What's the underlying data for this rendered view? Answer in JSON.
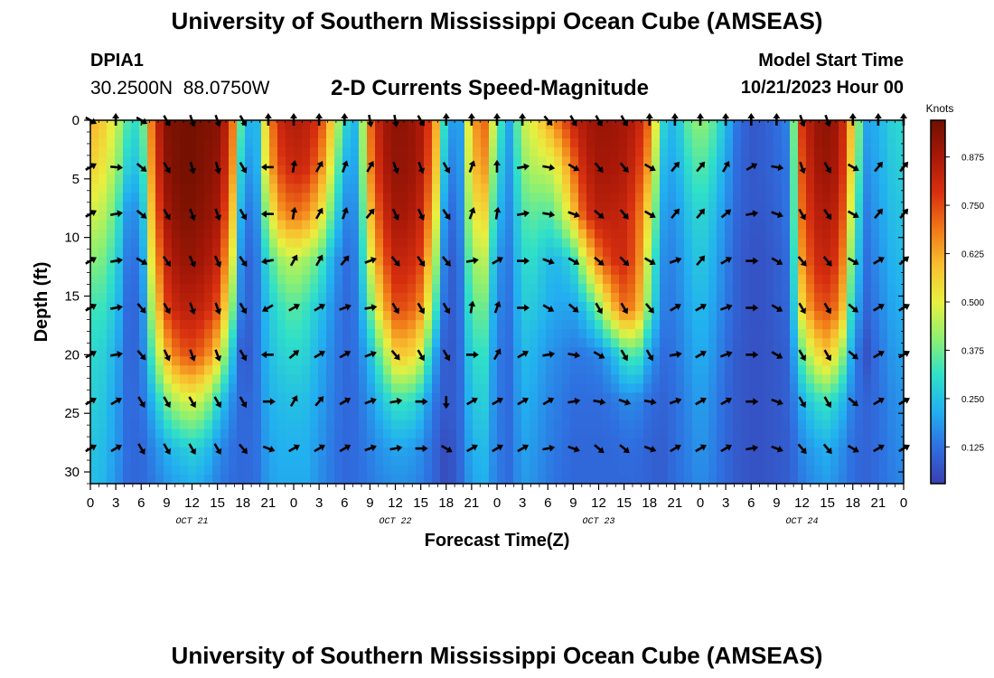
{
  "page": {
    "title": "University of Southern Mississippi Ocean Cube (AMSEAS)",
    "footer_title": "University of Southern Mississippi Ocean Cube (AMSEAS)"
  },
  "station": {
    "id": "DPIA1",
    "coords": "30.2500N  88.0750W"
  },
  "subtitle": "2-D Currents Speed-Magnitude",
  "model": {
    "label": "Model Start Time",
    "value": "10/21/2023 Hour 00"
  },
  "chart_data": {
    "type": "heatmap",
    "title": "2-D Currents Speed-Magnitude",
    "xlabel": "Forecast Time(Z)",
    "ylabel": "Depth (ft)",
    "x_ticks": [
      "0",
      "3",
      "6",
      "9",
      "12",
      "15",
      "18",
      "21",
      "0",
      "3",
      "6",
      "9",
      "12",
      "15",
      "18",
      "21",
      "0",
      "3",
      "6",
      "9",
      "12",
      "15",
      "18",
      "21",
      "0",
      "3",
      "6",
      "9",
      "12",
      "15",
      "18",
      "21",
      "0"
    ],
    "x_range_hours": [
      0,
      96
    ],
    "date_labels": [
      {
        "label": "OCT 21",
        "hour": 12
      },
      {
        "label": "OCT 22",
        "hour": 36
      },
      {
        "label": "OCT 23",
        "hour": 60
      },
      {
        "label": "OCT 24",
        "hour": 84
      }
    ],
    "y_ticks": [
      0,
      5,
      10,
      15,
      20,
      25,
      30
    ],
    "y_range_ft": [
      0,
      31
    ],
    "colorbar": {
      "unit": "Knots",
      "range": [
        0.03,
        0.97
      ],
      "ticks": [
        "0.875",
        "0.750",
        "0.625",
        "0.500",
        "0.375",
        "0.250",
        "0.125"
      ],
      "colors": [
        "#3a3fb0",
        "#2f6fe0",
        "#22b0f0",
        "#30e0c8",
        "#8ef070",
        "#e8f040",
        "#f8c030",
        "#f07818",
        "#d83010",
        "#a81808",
        "#701000"
      ]
    },
    "columns_hours": [
      0,
      1.5,
      3,
      4.5,
      6,
      7.5,
      9,
      10.5,
      12,
      13.5,
      15,
      16.5,
      18,
      19.5,
      21,
      22.5,
      24,
      25.5,
      27,
      28.5,
      30,
      31.5,
      33,
      34.5,
      36,
      37.5,
      39,
      40.5,
      42,
      43.5,
      45,
      46.5,
      48,
      49.5,
      51,
      52.5,
      54,
      55.5,
      57,
      58.5,
      60,
      61.5,
      63,
      64.5,
      66,
      67.5,
      69,
      70.5,
      72,
      73.5,
      75,
      76.5,
      78,
      79.5,
      81,
      82.5,
      84,
      85.5,
      87,
      88.5,
      90,
      91.5,
      93,
      94.5,
      96
    ],
    "rows_depth_ft": [
      0,
      4,
      8,
      12,
      16,
      20,
      24,
      28,
      31
    ],
    "speed_grid_knots": [
      [
        0.62,
        0.57,
        0.48,
        0.33,
        0.3,
        0.78,
        0.94,
        0.96,
        0.96,
        0.95,
        0.93,
        0.8,
        0.27,
        0.18,
        0.64,
        0.82,
        0.86,
        0.84,
        0.78,
        0.57,
        0.3,
        0.22,
        0.7,
        0.88,
        0.92,
        0.92,
        0.87,
        0.72,
        0.24,
        0.14,
        0.62,
        0.72,
        0.38,
        0.2,
        0.46,
        0.52,
        0.62,
        0.72,
        0.82,
        0.88,
        0.9,
        0.9,
        0.88,
        0.85,
        0.7,
        0.3,
        0.22,
        0.36,
        0.42,
        0.36,
        0.24,
        0.12,
        0.08,
        0.09,
        0.12,
        0.16,
        0.78,
        0.9,
        0.92,
        0.88,
        0.56,
        0.2,
        0.22,
        0.28,
        0.3
      ],
      [
        0.56,
        0.52,
        0.43,
        0.26,
        0.25,
        0.74,
        0.92,
        0.96,
        0.96,
        0.94,
        0.91,
        0.76,
        0.2,
        0.17,
        0.6,
        0.76,
        0.82,
        0.8,
        0.7,
        0.48,
        0.22,
        0.2,
        0.66,
        0.86,
        0.91,
        0.91,
        0.86,
        0.68,
        0.18,
        0.13,
        0.58,
        0.66,
        0.3,
        0.18,
        0.4,
        0.45,
        0.46,
        0.54,
        0.7,
        0.84,
        0.88,
        0.88,
        0.86,
        0.8,
        0.62,
        0.24,
        0.2,
        0.3,
        0.36,
        0.3,
        0.2,
        0.11,
        0.08,
        0.09,
        0.11,
        0.14,
        0.74,
        0.88,
        0.9,
        0.86,
        0.5,
        0.17,
        0.21,
        0.26,
        0.28
      ],
      [
        0.48,
        0.45,
        0.36,
        0.16,
        0.18,
        0.68,
        0.88,
        0.94,
        0.94,
        0.92,
        0.88,
        0.68,
        0.14,
        0.14,
        0.46,
        0.64,
        0.7,
        0.66,
        0.56,
        0.36,
        0.16,
        0.17,
        0.58,
        0.8,
        0.88,
        0.88,
        0.82,
        0.6,
        0.12,
        0.12,
        0.5,
        0.56,
        0.24,
        0.16,
        0.34,
        0.36,
        0.34,
        0.42,
        0.58,
        0.78,
        0.84,
        0.84,
        0.82,
        0.74,
        0.52,
        0.2,
        0.17,
        0.25,
        0.3,
        0.25,
        0.17,
        0.1,
        0.08,
        0.08,
        0.1,
        0.14,
        0.7,
        0.84,
        0.86,
        0.82,
        0.42,
        0.14,
        0.19,
        0.24,
        0.26
      ],
      [
        0.4,
        0.38,
        0.3,
        0.12,
        0.14,
        0.6,
        0.82,
        0.9,
        0.9,
        0.88,
        0.82,
        0.58,
        0.1,
        0.12,
        0.32,
        0.42,
        0.46,
        0.42,
        0.36,
        0.22,
        0.12,
        0.15,
        0.48,
        0.72,
        0.82,
        0.82,
        0.76,
        0.5,
        0.09,
        0.1,
        0.42,
        0.46,
        0.18,
        0.14,
        0.3,
        0.3,
        0.24,
        0.24,
        0.3,
        0.5,
        0.68,
        0.78,
        0.8,
        0.72,
        0.42,
        0.17,
        0.15,
        0.22,
        0.27,
        0.22,
        0.15,
        0.09,
        0.07,
        0.07,
        0.09,
        0.12,
        0.64,
        0.8,
        0.82,
        0.76,
        0.34,
        0.12,
        0.17,
        0.22,
        0.24
      ],
      [
        0.33,
        0.32,
        0.26,
        0.1,
        0.12,
        0.5,
        0.76,
        0.84,
        0.84,
        0.82,
        0.74,
        0.46,
        0.09,
        0.12,
        0.26,
        0.32,
        0.36,
        0.32,
        0.26,
        0.18,
        0.11,
        0.14,
        0.36,
        0.6,
        0.74,
        0.74,
        0.66,
        0.38,
        0.08,
        0.1,
        0.36,
        0.38,
        0.16,
        0.13,
        0.27,
        0.26,
        0.22,
        0.2,
        0.2,
        0.26,
        0.4,
        0.58,
        0.7,
        0.66,
        0.36,
        0.15,
        0.14,
        0.2,
        0.24,
        0.2,
        0.14,
        0.09,
        0.07,
        0.07,
        0.09,
        0.11,
        0.54,
        0.72,
        0.74,
        0.68,
        0.26,
        0.1,
        0.15,
        0.2,
        0.22
      ],
      [
        0.3,
        0.28,
        0.22,
        0.1,
        0.12,
        0.38,
        0.6,
        0.72,
        0.74,
        0.7,
        0.56,
        0.3,
        0.06,
        0.12,
        0.24,
        0.28,
        0.3,
        0.28,
        0.22,
        0.16,
        0.11,
        0.13,
        0.24,
        0.4,
        0.56,
        0.58,
        0.48,
        0.22,
        0.07,
        0.1,
        0.3,
        0.32,
        0.14,
        0.12,
        0.24,
        0.22,
        0.18,
        0.16,
        0.14,
        0.14,
        0.16,
        0.22,
        0.32,
        0.36,
        0.2,
        0.12,
        0.13,
        0.18,
        0.22,
        0.18,
        0.12,
        0.08,
        0.07,
        0.07,
        0.08,
        0.1,
        0.36,
        0.52,
        0.58,
        0.46,
        0.18,
        0.06,
        0.13,
        0.18,
        0.2
      ],
      [
        0.28,
        0.26,
        0.2,
        0.11,
        0.12,
        0.24,
        0.38,
        0.46,
        0.48,
        0.44,
        0.3,
        0.18,
        0.1,
        0.12,
        0.22,
        0.24,
        0.25,
        0.24,
        0.2,
        0.15,
        0.11,
        0.12,
        0.18,
        0.26,
        0.32,
        0.32,
        0.26,
        0.14,
        0.08,
        0.1,
        0.26,
        0.28,
        0.14,
        0.12,
        0.22,
        0.2,
        0.16,
        0.14,
        0.12,
        0.12,
        0.12,
        0.13,
        0.16,
        0.16,
        0.12,
        0.1,
        0.12,
        0.16,
        0.2,
        0.16,
        0.11,
        0.08,
        0.07,
        0.07,
        0.08,
        0.1,
        0.22,
        0.3,
        0.32,
        0.26,
        0.14,
        0.1,
        0.12,
        0.16,
        0.18
      ],
      [
        0.26,
        0.24,
        0.19,
        0.11,
        0.11,
        0.16,
        0.22,
        0.26,
        0.28,
        0.26,
        0.18,
        0.13,
        0.11,
        0.12,
        0.2,
        0.22,
        0.22,
        0.22,
        0.18,
        0.14,
        0.11,
        0.12,
        0.15,
        0.18,
        0.2,
        0.2,
        0.17,
        0.11,
        0.05,
        0.1,
        0.22,
        0.24,
        0.14,
        0.12,
        0.2,
        0.18,
        0.15,
        0.13,
        0.11,
        0.11,
        0.11,
        0.11,
        0.12,
        0.12,
        0.1,
        0.09,
        0.12,
        0.15,
        0.18,
        0.15,
        0.11,
        0.08,
        0.07,
        0.07,
        0.08,
        0.09,
        0.16,
        0.2,
        0.22,
        0.18,
        0.12,
        0.1,
        0.12,
        0.15,
        0.17
      ],
      [
        0.25,
        0.23,
        0.18,
        0.11,
        0.11,
        0.14,
        0.18,
        0.2,
        0.22,
        0.2,
        0.15,
        0.12,
        0.11,
        0.12,
        0.19,
        0.21,
        0.21,
        0.21,
        0.17,
        0.14,
        0.11,
        0.12,
        0.14,
        0.16,
        0.17,
        0.17,
        0.15,
        0.11,
        0.05,
        0.1,
        0.2,
        0.22,
        0.14,
        0.12,
        0.19,
        0.17,
        0.14,
        0.12,
        0.11,
        0.11,
        0.11,
        0.11,
        0.11,
        0.11,
        0.1,
        0.09,
        0.12,
        0.14,
        0.17,
        0.14,
        0.11,
        0.08,
        0.07,
        0.07,
        0.08,
        0.09,
        0.14,
        0.17,
        0.19,
        0.16,
        0.12,
        0.1,
        0.12,
        0.14,
        0.16
      ]
    ],
    "arrow_rows_depth_ft": [
      0,
      4,
      8,
      12,
      16,
      20,
      24,
      28
    ],
    "arrow_hours": [
      0,
      3,
      6,
      9,
      12,
      15,
      18,
      21,
      24,
      27,
      30,
      33,
      36,
      39,
      42,
      45,
      48,
      51,
      54,
      57,
      60,
      63,
      66,
      69,
      72,
      75,
      78,
      81,
      84,
      87,
      90,
      93,
      96
    ],
    "arrow_directions_deg": [
      [
        120,
        0,
        120,
        150,
        160,
        160,
        150,
        0,
        0,
        0,
        0,
        170,
        170,
        150,
        0,
        0,
        0,
        0,
        140,
        150,
        150,
        150,
        0,
        0,
        0,
        0,
        0,
        0,
        160,
        160,
        0,
        0,
        0
      ],
      [
        60,
        95,
        130,
        150,
        165,
        165,
        150,
        270,
        10,
        30,
        20,
        30,
        160,
        160,
        150,
        20,
        0,
        80,
        100,
        120,
        140,
        140,
        120,
        40,
        40,
        30,
        60,
        100,
        160,
        150,
        120,
        40,
        40
      ],
      [
        60,
        80,
        130,
        150,
        160,
        160,
        150,
        270,
        10,
        30,
        20,
        40,
        155,
        155,
        145,
        20,
        10,
        80,
        100,
        110,
        130,
        140,
        120,
        40,
        40,
        50,
        80,
        110,
        150,
        145,
        120,
        40,
        40
      ],
      [
        60,
        80,
        120,
        145,
        155,
        155,
        145,
        260,
        30,
        30,
        40,
        70,
        140,
        145,
        140,
        80,
        60,
        90,
        110,
        120,
        130,
        135,
        120,
        70,
        40,
        60,
        90,
        120,
        140,
        140,
        120,
        60,
        50
      ],
      [
        60,
        80,
        140,
        150,
        160,
        160,
        150,
        240,
        60,
        60,
        70,
        80,
        150,
        150,
        150,
        10,
        20,
        90,
        120,
        130,
        150,
        150,
        140,
        60,
        60,
        70,
        90,
        120,
        150,
        150,
        130,
        60,
        60
      ],
      [
        60,
        80,
        140,
        155,
        160,
        160,
        150,
        270,
        50,
        60,
        60,
        70,
        140,
        150,
        150,
        90,
        30,
        60,
        80,
        100,
        120,
        150,
        150,
        80,
        60,
        70,
        90,
        120,
        150,
        150,
        130,
        60,
        60
      ],
      [
        60,
        60,
        150,
        150,
        150,
        150,
        150,
        90,
        30,
        40,
        60,
        70,
        80,
        90,
        180,
        60,
        60,
        60,
        60,
        80,
        100,
        110,
        100,
        70,
        60,
        60,
        90,
        110,
        150,
        150,
        130,
        60,
        60
      ],
      [
        60,
        60,
        150,
        150,
        150,
        150,
        140,
        110,
        60,
        60,
        60,
        70,
        80,
        90,
        120,
        60,
        60,
        60,
        80,
        110,
        130,
        130,
        110,
        60,
        60,
        60,
        80,
        110,
        140,
        140,
        120,
        60,
        60
      ]
    ]
  }
}
